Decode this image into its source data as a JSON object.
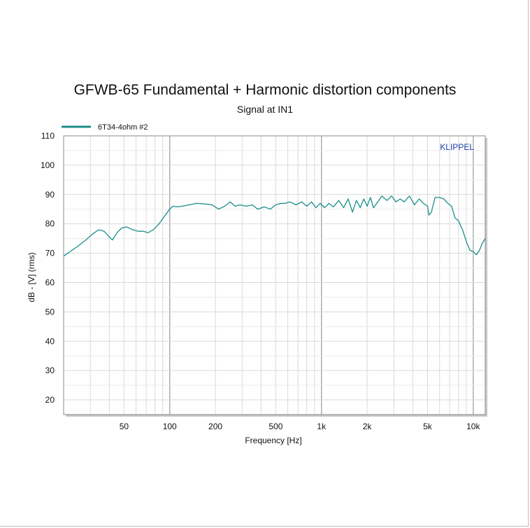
{
  "chart_data": {
    "type": "line",
    "title": "GFWB-65 Fundamental + Harmonic distortion components",
    "subtitle": "Signal at IN1",
    "xlabel": "Frequency [Hz]",
    "ylabel": "dB - [V] (rms)",
    "x_scale": "log",
    "xlim": [
      20,
      12000
    ],
    "ylim": [
      15,
      110
    ],
    "grid": true,
    "legend_position": "top-left",
    "watermark": "KLIPPEL",
    "watermark_color": "#1f3fb0",
    "x_ticks": [
      {
        "value": 50,
        "label": "50"
      },
      {
        "value": 100,
        "label": "100"
      },
      {
        "value": 200,
        "label": "200"
      },
      {
        "value": 500,
        "label": "500"
      },
      {
        "value": 1000,
        "label": "1k"
      },
      {
        "value": 2000,
        "label": "2k"
      },
      {
        "value": 5000,
        "label": "5k"
      },
      {
        "value": 10000,
        "label": "10k"
      }
    ],
    "y_ticks": [
      20,
      30,
      40,
      50,
      60,
      70,
      80,
      90,
      100,
      110
    ],
    "series": [
      {
        "name": "6T34-4ohm #2",
        "color": "#1a8f8a",
        "x": [
          20,
          22,
          25,
          28,
          31,
          34,
          37,
          40,
          42,
          45,
          48,
          52,
          57,
          62,
          67,
          72,
          78,
          85,
          92,
          100,
          105,
          112,
          120,
          135,
          150,
          170,
          190,
          210,
          230,
          250,
          270,
          290,
          320,
          350,
          380,
          420,
          460,
          500,
          540,
          580,
          620,
          680,
          740,
          800,
          860,
          920,
          980,
          1050,
          1120,
          1200,
          1300,
          1400,
          1500,
          1600,
          1700,
          1800,
          1900,
          2000,
          2100,
          2200,
          2350,
          2500,
          2700,
          2900,
          3100,
          3300,
          3500,
          3800,
          4100,
          4400,
          4700,
          5000,
          5100,
          5300,
          5600,
          6000,
          6400,
          6800,
          7200,
          7600,
          8000,
          8500,
          9000,
          9500,
          10000,
          10500,
          11000,
          11500,
          12000
        ],
        "y": [
          69,
          70.5,
          72.5,
          74.5,
          76.5,
          78,
          77.5,
          75.5,
          74.5,
          77,
          78.5,
          79,
          78,
          77.5,
          77.5,
          77,
          78,
          80,
          82.5,
          85,
          86,
          85.8,
          86,
          86.5,
          87,
          86.8,
          86.5,
          85,
          86,
          87.5,
          86,
          86.5,
          86,
          86.5,
          85,
          85.8,
          85,
          86.5,
          87,
          87,
          87.5,
          86.5,
          87.5,
          86,
          87.5,
          85.5,
          87,
          85.5,
          87,
          85.8,
          88,
          85.5,
          88.5,
          84,
          88,
          85.5,
          88.5,
          86,
          89,
          85.5,
          87.5,
          89.5,
          88,
          89.5,
          87.5,
          88.5,
          87.5,
          89.5,
          86.5,
          88.5,
          87,
          86,
          83,
          84,
          89,
          89,
          88.5,
          87,
          86,
          82,
          81,
          78,
          74,
          71,
          70.5,
          69.5,
          71,
          73.5,
          75
        ]
      }
    ]
  }
}
